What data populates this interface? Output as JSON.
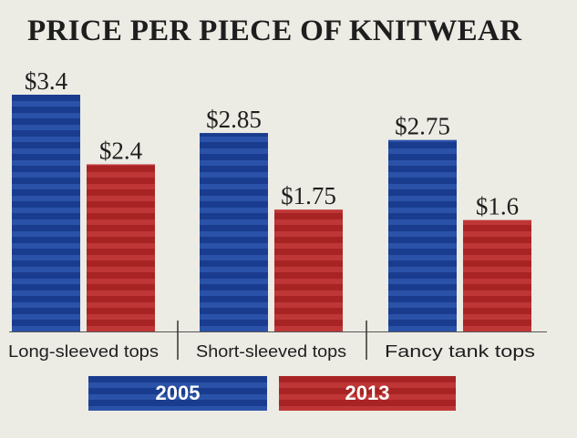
{
  "chart_data": {
    "type": "bar",
    "title": "PRICE PER PIECE OF KNITWEAR",
    "categories": [
      "Long-sleeved tops",
      "Short-sleeved tops",
      "Fancy tank tops"
    ],
    "series": [
      {
        "name": "2005",
        "values": [
          3.4,
          2.85,
          2.75
        ],
        "labels": [
          "$3.4",
          "$2.85",
          "$2.75"
        ],
        "color": "#1f459b"
      },
      {
        "name": "2013",
        "values": [
          2.4,
          1.75,
          1.6
        ],
        "labels": [
          "$2.4",
          "$1.75",
          "$1.6"
        ],
        "color": "#b02a2a"
      }
    ],
    "ylim": [
      0,
      3.4
    ],
    "grid": false,
    "legend_position": "bottom"
  }
}
